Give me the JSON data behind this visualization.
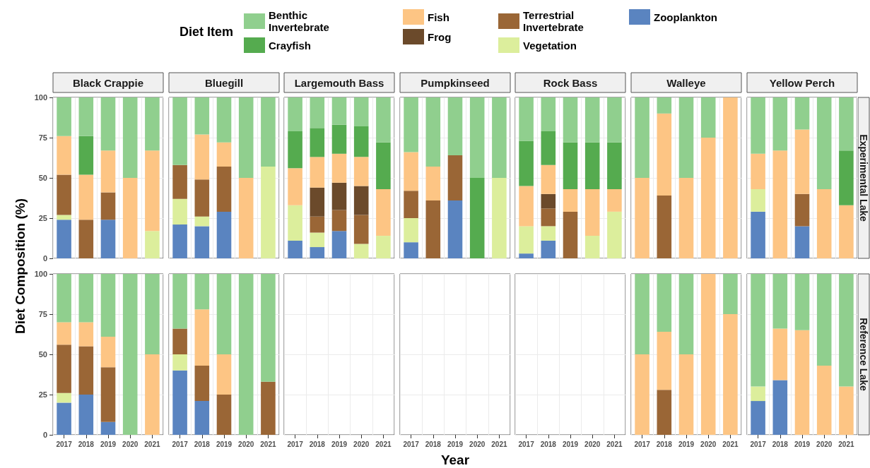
{
  "chart_data": [
    {
      "type": "bar",
      "stacked": true,
      "title": "Black Crappie",
      "ylabel": "Diet Composition (%)",
      "legend": "top",
      "legend_title": "Diet Item",
      "categories": [
        "2017",
        "2018",
        "2019",
        "2020",
        "2021"
      ],
      "ylim": [
        0,
        100
      ],
      "yticks": [
        0,
        25,
        50,
        75,
        100
      ],
      "grid": true,
      "tick_labels": "y",
      "series": [
        {
          "name": "Zooplankton",
          "color": "#5a84c0",
          "values": [
            24,
            null,
            24,
            null,
            null
          ]
        },
        {
          "name": "Vegetation",
          "color": "#dcee9c",
          "values": [
            3,
            null,
            null,
            null,
            17
          ]
        },
        {
          "name": "Terrestrial Invertebrate",
          "color": "#9a6636",
          "values": [
            25,
            24,
            17,
            null,
            null
          ]
        },
        {
          "name": "Frog",
          "color": "#6b4a2b",
          "values": [
            null,
            null,
            null,
            null,
            null
          ]
        },
        {
          "name": "Fish",
          "color": "#fdc584",
          "values": [
            24,
            28,
            26,
            50,
            50
          ]
        },
        {
          "name": "Crayfish",
          "color": "#55ab4f",
          "values": [
            null,
            24,
            null,
            null,
            null
          ]
        },
        {
          "name": "Benthic Invertebrate",
          "color": "#90cf8e",
          "values": [
            24,
            24,
            33,
            50,
            33
          ]
        }
      ]
    },
    {
      "type": "bar",
      "stacked": true,
      "title": "Bluegill",
      "categories": [
        "2017",
        "2018",
        "2019",
        "2020",
        "2021"
      ],
      "ylim": [
        0,
        100
      ],
      "yticks": [
        0,
        25,
        50,
        75,
        100
      ],
      "grid": true,
      "tick_labels": false,
      "series": [
        {
          "name": "Zooplankton",
          "color": "#5a84c0",
          "values": [
            21,
            20,
            29,
            null,
            null
          ]
        },
        {
          "name": "Vegetation",
          "color": "#dcee9c",
          "values": [
            16,
            6,
            null,
            null,
            57
          ]
        },
        {
          "name": "Terrestrial Invertebrate",
          "color": "#9a6636",
          "values": [
            21,
            23,
            28,
            null,
            null
          ]
        },
        {
          "name": "Fish",
          "color": "#fdc584",
          "values": [
            null,
            28,
            15,
            50,
            null
          ]
        },
        {
          "name": "Benthic Invertebrate",
          "color": "#90cf8e",
          "values": [
            42,
            23,
            28,
            50,
            43
          ]
        }
      ]
    },
    {
      "type": "bar",
      "stacked": true,
      "title": "Largemouth Bass",
      "categories": [
        "2017",
        "2018",
        "2019",
        "2020",
        "2021"
      ],
      "ylim": [
        0,
        100
      ],
      "yticks": [
        0,
        25,
        50,
        75,
        100
      ],
      "grid": true,
      "tick_labels": false,
      "series": [
        {
          "name": "Zooplankton",
          "color": "#5a84c0",
          "values": [
            11,
            7,
            17,
            null,
            null
          ]
        },
        {
          "name": "Vegetation",
          "color": "#dcee9c",
          "values": [
            22,
            9,
            null,
            9,
            14
          ]
        },
        {
          "name": "Terrestrial Invertebrate",
          "color": "#9a6636",
          "values": [
            null,
            10,
            13,
            18,
            null
          ]
        },
        {
          "color": "#6b4a2b",
          "values": [
            null,
            18,
            17,
            18,
            null
          ]
        },
        {
          "name": "Fish",
          "color": "#fdc584",
          "values": [
            23,
            19,
            18,
            18,
            29
          ]
        },
        {
          "name": "Crayfish",
          "color": "#55ab4f",
          "values": [
            23,
            18,
            18,
            19,
            29
          ]
        },
        {
          "name": "Benthic Invertebrate",
          "color": "#90cf8e",
          "values": [
            21,
            19,
            17,
            18,
            28
          ]
        }
      ]
    },
    {
      "type": "bar",
      "stacked": true,
      "title": "Pumpkinseed",
      "categories": [
        "2017",
        "2018",
        "2019",
        "2020",
        "2021"
      ],
      "ylim": [
        0,
        100
      ],
      "yticks": [
        0,
        25,
        50,
        75,
        100
      ],
      "grid": true,
      "tick_labels": false,
      "series": [
        {
          "name": "Zooplankton",
          "color": "#5a84c0",
          "values": [
            10,
            null,
            36,
            null,
            null
          ]
        },
        {
          "name": "Vegetation",
          "color": "#dcee9c",
          "values": [
            15,
            null,
            null,
            null,
            50
          ]
        },
        {
          "name": "Terrestrial Invertebrate",
          "color": "#9a6636",
          "values": [
            17,
            36,
            28,
            null,
            null
          ]
        },
        {
          "name": "Fish",
          "color": "#fdc584",
          "values": [
            24,
            21,
            null,
            null,
            null
          ]
        },
        {
          "name": "Crayfish",
          "color": "#55ab4f",
          "values": [
            null,
            null,
            null,
            50,
            null
          ]
        },
        {
          "name": "Benthic Invertebrate",
          "color": "#90cf8e",
          "values": [
            34,
            43,
            36,
            50,
            50
          ]
        }
      ]
    },
    {
      "type": "bar",
      "stacked": true,
      "title": "Rock Bass",
      "categories": [
        "2017",
        "2018",
        "2019",
        "2020",
        "2021"
      ],
      "ylim": [
        0,
        100
      ],
      "yticks": [
        0,
        25,
        50,
        75,
        100
      ],
      "grid": true,
      "tick_labels": false,
      "series": [
        {
          "name": "Zooplankton",
          "color": "#5a84c0",
          "values": [
            3,
            11,
            null,
            null,
            null
          ]
        },
        {
          "name": "Vegetation",
          "color": "#dcee9c",
          "values": [
            17,
            9,
            null,
            14,
            29
          ]
        },
        {
          "name": "Terrestrial Invertebrate",
          "color": "#9a6636",
          "values": [
            null,
            11,
            29,
            null,
            null
          ]
        },
        {
          "color": "#6b4a2b",
          "values": [
            null,
            9,
            null,
            null,
            null
          ]
        },
        {
          "name": "Fish",
          "color": "#fdc584",
          "values": [
            25,
            18,
            14,
            29,
            14
          ]
        },
        {
          "name": "Crayfish",
          "color": "#55ab4f",
          "values": [
            28,
            21,
            29,
            29,
            29
          ]
        },
        {
          "name": "Benthic Invertebrate",
          "color": "#90cf8e",
          "values": [
            27,
            21,
            28,
            28,
            28
          ]
        }
      ]
    },
    {
      "type": "bar",
      "stacked": true,
      "title": "Walleye",
      "categories": [
        "2017",
        "2018",
        "2019",
        "2020",
        "2021"
      ],
      "ylim": [
        0,
        100
      ],
      "yticks": [
        0,
        25,
        50,
        75,
        100
      ],
      "grid": true,
      "tick_labels": false,
      "series": [
        {
          "name": "Terrestrial Invertebrate",
          "color": "#9a6636",
          "values": [
            null,
            39,
            null,
            null,
            null
          ]
        },
        {
          "name": "Fish",
          "color": "#fdc584",
          "values": [
            50,
            51,
            50,
            75,
            100
          ]
        },
        {
          "name": "Benthic Invertebrate",
          "color": "#90cf8e",
          "values": [
            50,
            10,
            50,
            25,
            null
          ]
        }
      ]
    },
    {
      "type": "bar",
      "stacked": true,
      "title": "Yellow Perch",
      "subtitle": "Experimental Lake",
      "categories": [
        "2017",
        "2018",
        "2019",
        "2020",
        "2021"
      ],
      "ylim": [
        0,
        100
      ],
      "yticks": [
        0,
        25,
        50,
        75,
        100
      ],
      "grid": true,
      "tick_labels": false,
      "series": [
        {
          "name": "Zooplankton",
          "color": "#5a84c0",
          "values": [
            29,
            null,
            20,
            null,
            null
          ]
        },
        {
          "name": "Vegetation",
          "color": "#dcee9c",
          "values": [
            14,
            null,
            null,
            null,
            null
          ]
        },
        {
          "name": "Terrestrial Invertebrate",
          "color": "#9a6636",
          "values": [
            null,
            null,
            20,
            null,
            null
          ]
        },
        {
          "name": "Fish",
          "color": "#fdc584",
          "values": [
            22,
            67,
            40,
            43,
            33
          ]
        },
        {
          "name": "Crayfish",
          "color": "#55ab4f",
          "values": [
            null,
            null,
            null,
            null,
            34
          ]
        },
        {
          "name": "Benthic Invertebrate",
          "color": "#90cf8e",
          "values": [
            35,
            33,
            20,
            57,
            33
          ]
        }
      ]
    },
    {
      "type": "bar",
      "stacked": true,
      "categories": [
        "2017",
        "2018",
        "2019",
        "2020",
        "2021"
      ],
      "ylim": [
        0,
        100
      ],
      "yticks": [
        0,
        25,
        50,
        75,
        100
      ],
      "grid": true,
      "series": [
        {
          "name": "Zooplankton",
          "color": "#5a84c0",
          "values": [
            20,
            25,
            8,
            null,
            null
          ]
        },
        {
          "name": "Vegetation",
          "color": "#dcee9c",
          "values": [
            6,
            null,
            null,
            null,
            null
          ]
        },
        {
          "name": "Terrestrial Invertebrate",
          "color": "#9a6636",
          "values": [
            30,
            30,
            34,
            null,
            null
          ]
        },
        {
          "name": "Fish",
          "color": "#fdc584",
          "values": [
            14,
            15,
            19,
            null,
            50
          ]
        },
        {
          "name": "Benthic Invertebrate",
          "color": "#90cf8e",
          "values": [
            30,
            30,
            39,
            100,
            50
          ]
        }
      ]
    },
    {
      "type": "bar",
      "stacked": true,
      "categories": [
        "2017",
        "2018",
        "2019",
        "2020",
        "2021"
      ],
      "ylim": [
        0,
        100
      ],
      "yticks": [
        0,
        25,
        50,
        75,
        100
      ],
      "grid": true,
      "tick_labels": "x",
      "series": [
        {
          "name": "Zooplankton",
          "color": "#5a84c0",
          "values": [
            40,
            21,
            null,
            null,
            null
          ]
        },
        {
          "name": "Vegetation",
          "color": "#dcee9c",
          "values": [
            10,
            null,
            null,
            null,
            null
          ]
        },
        {
          "name": "Terrestrial Invertebrate",
          "color": "#9a6636",
          "values": [
            16,
            22,
            25,
            null,
            33
          ]
        },
        {
          "name": "Fish",
          "color": "#fdc584",
          "values": [
            null,
            35,
            25,
            null,
            null
          ]
        },
        {
          "name": "Benthic Invertebrate",
          "color": "#90cf8e",
          "values": [
            34,
            22,
            50,
            100,
            67
          ]
        }
      ]
    },
    {
      "type": "bar",
      "categories": [
        "2017",
        "2018",
        "2019",
        "2020",
        "2021"
      ],
      "ylim": [
        0,
        100
      ],
      "yticks": [
        0,
        25,
        50,
        75,
        100
      ],
      "grid": true,
      "tick_labels": "x"
    },
    {
      "type": "bar",
      "xlabel": "Year",
      "categories": [
        "2017",
        "2018",
        "2019",
        "2020",
        "2021"
      ],
      "ylim": [
        0,
        100
      ],
      "yticks": [
        0,
        25,
        50,
        75,
        100
      ],
      "grid": true,
      "tick_labels": "x"
    },
    {
      "type": "bar",
      "categories": [
        "2017",
        "2018",
        "2019",
        "2020",
        "2021"
      ],
      "ylim": [
        0,
        100
      ],
      "yticks": [
        0,
        25,
        50,
        75,
        100
      ],
      "grid": true,
      "tick_labels": "x"
    },
    {
      "type": "bar",
      "stacked": true,
      "categories": [
        "2017",
        "2018",
        "2019",
        "2020",
        "2021"
      ],
      "ylim": [
        0,
        100
      ],
      "yticks": [
        0,
        25,
        50,
        75,
        100
      ],
      "grid": true,
      "tick_labels": "x",
      "series": [
        {
          "name": "Terrestrial Invertebrate",
          "color": "#9a6636",
          "values": [
            null,
            28,
            null,
            null,
            null
          ]
        },
        {
          "name": "Fish",
          "color": "#fdc584",
          "values": [
            50,
            36,
            50,
            100,
            75
          ]
        },
        {
          "name": "Benthic Invertebrate",
          "color": "#90cf8e",
          "values": [
            50,
            36,
            50,
            null,
            25
          ]
        }
      ]
    },
    {
      "type": "bar",
      "stacked": true,
      "subtitle": "Reference Lake",
      "categories": [
        "2017",
        "2018",
        "2019",
        "2020",
        "2021"
      ],
      "ylim": [
        0,
        100
      ],
      "yticks": [
        0,
        25,
        50,
        75,
        100
      ],
      "grid": true,
      "tick_labels": "x",
      "series": [
        {
          "name": "Zooplankton",
          "color": "#5a84c0",
          "values": [
            21,
            34,
            null,
            null,
            null
          ]
        },
        {
          "name": "Vegetation",
          "color": "#dcee9c",
          "values": [
            9,
            null,
            null,
            null,
            null
          ]
        },
        {
          "name": "Fish",
          "color": "#fdc584",
          "values": [
            null,
            32,
            65,
            43,
            30
          ]
        },
        {
          "name": "Benthic Invertebrate",
          "color": "#90cf8e",
          "values": [
            70,
            34,
            35,
            57,
            70
          ]
        }
      ]
    }
  ]
}
